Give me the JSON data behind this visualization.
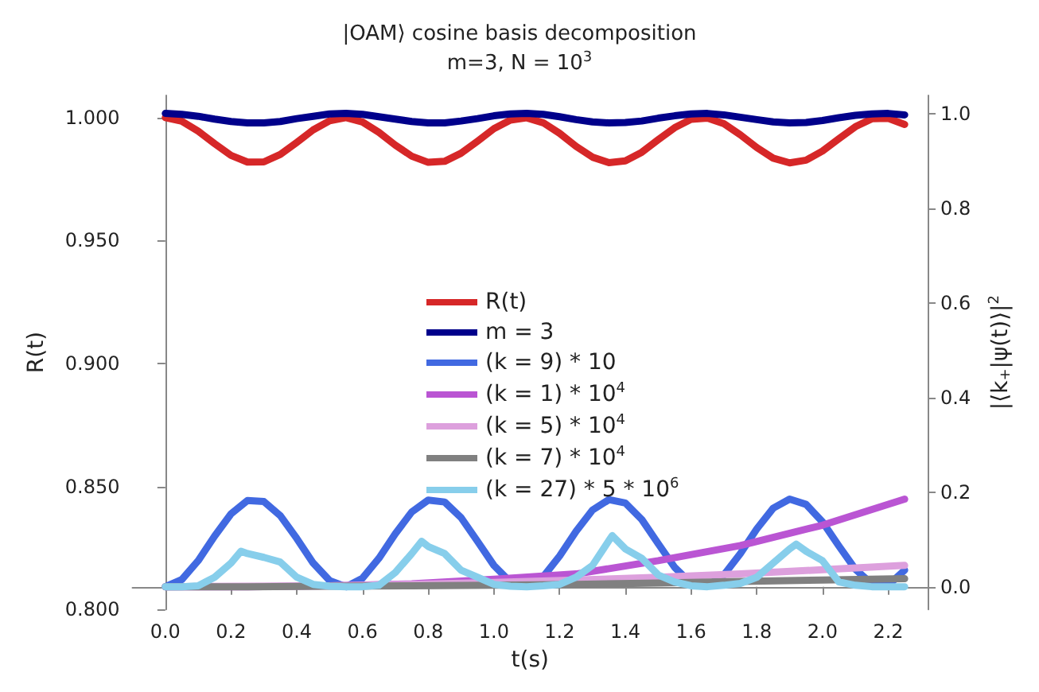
{
  "chart_data": {
    "type": "line",
    "title": "|OAM⟩ cosine basis decomposition",
    "subtitle": "m=3, N = 10$^{3}$",
    "xlabel": "t(s)",
    "ylabel": "R(t)",
    "y2label": "|⟨k$_{+}$|ψ(t)⟩|$^{2}$",
    "x": [
      0,
      0.05,
      0.1,
      0.15,
      0.2,
      0.25,
      0.3,
      0.35,
      0.4,
      0.45,
      0.5,
      0.55,
      0.6,
      0.65,
      0.7,
      0.75,
      0.8,
      0.85,
      0.9,
      0.95,
      1.0,
      1.05,
      1.1,
      1.15,
      1.2,
      1.25,
      1.3,
      1.35,
      1.4,
      1.45,
      1.5,
      1.55,
      1.6,
      1.65,
      1.7,
      1.75,
      1.8,
      1.85,
      1.9,
      1.95,
      2.0,
      2.05,
      2.1,
      2.15,
      2.2,
      2.25
    ],
    "series": [
      {
        "name": "R(t)",
        "color": "#d62728",
        "values": [
          1.0,
          0.9985,
          0.9945,
          0.9894,
          0.9846,
          0.9819,
          0.982,
          0.985,
          0.9899,
          0.995,
          0.9987,
          1.0,
          0.9982,
          0.994,
          0.9888,
          0.9843,
          0.9818,
          0.9822,
          0.9855,
          0.9904,
          0.9955,
          0.999,
          0.9999,
          0.9979,
          0.9936,
          0.9883,
          0.9839,
          0.9817,
          0.9824,
          0.9859,
          0.991,
          0.9959,
          0.9993,
          0.9998,
          0.9975,
          0.993,
          0.9878,
          0.9835,
          0.9816,
          0.9827,
          0.9864,
          0.9914,
          0.9963,
          0.9995,
          0.9997,
          0.9972
        ]
      },
      {
        "name": "m = 3",
        "color": "#00008b",
        "axis": "y2",
        "values": [
          1.0,
          0.998,
          0.994,
          0.988,
          0.983,
          0.98,
          0.98,
          0.983,
          0.989,
          0.994,
          0.999,
          1.0,
          0.998,
          0.993,
          0.988,
          0.983,
          0.98,
          0.98,
          0.984,
          0.989,
          0.995,
          0.999,
          1.0,
          0.998,
          0.993,
          0.987,
          0.982,
          0.98,
          0.981,
          0.984,
          0.99,
          0.995,
          0.999,
          1.0,
          0.997,
          0.992,
          0.987,
          0.982,
          0.98,
          0.981,
          0.985,
          0.991,
          0.996,
          0.999,
          1.0,
          0.997
        ]
      },
      {
        "name": "(k = 9) * 10",
        "color": "#4169e1",
        "axis": "y2",
        "values": [
          0,
          0.015,
          0.055,
          0.107,
          0.154,
          0.182,
          0.18,
          0.15,
          0.102,
          0.05,
          0.013,
          0,
          0.018,
          0.06,
          0.112,
          0.158,
          0.183,
          0.179,
          0.146,
          0.096,
          0.045,
          0.01,
          0.001,
          0.021,
          0.065,
          0.117,
          0.162,
          0.184,
          0.177,
          0.142,
          0.091,
          0.041,
          0.007,
          0.002,
          0.025,
          0.07,
          0.122,
          0.166,
          0.185,
          0.174,
          0.137,
          0.086,
          0.037,
          0.006,
          0.003,
          0.035
        ]
      },
      {
        "name": "(k = 1) * 10$^{4}$",
        "color": "#ba55d3",
        "axis": "y2",
        "x": [
          0,
          0.25,
          0.5,
          0.75,
          1.0,
          1.25,
          1.5,
          1.75,
          2.0,
          2.25
        ],
        "values": [
          0,
          0,
          0.002,
          0.006,
          0.016,
          0.027,
          0.055,
          0.087,
          0.13,
          0.185
        ]
      },
      {
        "name": "(k = 5) * 10$^{4}$",
        "color": "#dda0dd",
        "axis": "y2",
        "x": [
          0,
          0.5,
          0.75,
          1.0,
          1.25,
          1.5,
          1.75,
          2.0,
          2.25
        ],
        "values": [
          0,
          0.002,
          0.005,
          0.009,
          0.014,
          0.02,
          0.027,
          0.036,
          0.045
        ]
      },
      {
        "name": "(k = 7) * 10$^{4}$",
        "color": "#808080",
        "axis": "y2",
        "x": [
          0,
          0.25,
          0.5,
          0.75,
          1.0,
          1.25,
          1.5,
          1.75,
          2.0,
          2.25
        ],
        "values": [
          0,
          0,
          0.001,
          0.002,
          0.003,
          0.005,
          0.008,
          0.011,
          0.014,
          0.017
        ]
      },
      {
        "name": "(k = 27) * 5 * 10$^{6}$",
        "color": "#87ceeb",
        "axis": "y2",
        "x": [
          0,
          0.05,
          0.1,
          0.15,
          0.2,
          0.23,
          0.25,
          0.3,
          0.35,
          0.4,
          0.45,
          0.5,
          0.55,
          0.6,
          0.65,
          0.7,
          0.75,
          0.78,
          0.8,
          0.85,
          0.9,
          0.95,
          1.0,
          1.05,
          1.1,
          1.15,
          1.2,
          1.25,
          1.3,
          1.36,
          1.4,
          1.45,
          1.5,
          1.55,
          1.6,
          1.65,
          1.7,
          1.75,
          1.8,
          1.85,
          1.9,
          1.92,
          1.95,
          2.0,
          2.05,
          2.1,
          2.15,
          2.2,
          2.25
        ],
        "values": [
          0,
          0,
          0.002,
          0.02,
          0.05,
          0.075,
          0.07,
          0.062,
          0.052,
          0.02,
          0.005,
          0.001,
          0,
          0,
          0.003,
          0.03,
          0.07,
          0.096,
          0.085,
          0.07,
          0.035,
          0.02,
          0.005,
          0.001,
          0,
          0.002,
          0.005,
          0.02,
          0.045,
          0.108,
          0.08,
          0.06,
          0.025,
          0.01,
          0.002,
          0,
          0.003,
          0.007,
          0.02,
          0.05,
          0.08,
          0.09,
          0.075,
          0.055,
          0.01,
          0.003,
          0,
          0,
          0
        ]
      }
    ],
    "xlim": [
      -0.1,
      2.32
    ],
    "xticks": [
      {
        "value": 0,
        "label": "0.0"
      },
      {
        "value": 0.2,
        "label": "0.2"
      },
      {
        "value": 0.4,
        "label": "0.4"
      },
      {
        "value": 0.6,
        "label": "0.6"
      },
      {
        "value": 0.8,
        "label": "0.8"
      },
      {
        "value": 1.0,
        "label": "1.0"
      },
      {
        "value": 1.2,
        "label": "1.2"
      },
      {
        "value": 1.4,
        "label": "1.4"
      },
      {
        "value": 1.6,
        "label": "1.6"
      },
      {
        "value": 1.8,
        "label": "1.8"
      },
      {
        "value": 2.0,
        "label": "2.0"
      },
      {
        "value": 2.2,
        "label": "2.2"
      }
    ],
    "ylim": [
      0.8,
      1.009
    ],
    "yticks": [
      {
        "value": 0.8,
        "label": "0.800"
      },
      {
        "value": 0.85,
        "label": "0.850"
      },
      {
        "value": 0.9,
        "label": "0.900"
      },
      {
        "value": 0.95,
        "label": "0.950"
      },
      {
        "value": 1.0,
        "label": "1.000"
      }
    ],
    "y2lim": [
      -0.048,
      1.038
    ],
    "y2ticks": [
      {
        "value": 0,
        "label": "0.0"
      },
      {
        "value": 0.2,
        "label": "0.2"
      },
      {
        "value": 0.4,
        "label": "0.4"
      },
      {
        "value": 0.6,
        "label": "0.6"
      },
      {
        "value": 0.8,
        "label": "0.8"
      },
      {
        "value": 1.0,
        "label": "1.0"
      }
    ],
    "grid": false,
    "legend": "center",
    "marker": "none",
    "line_style": "solid"
  }
}
